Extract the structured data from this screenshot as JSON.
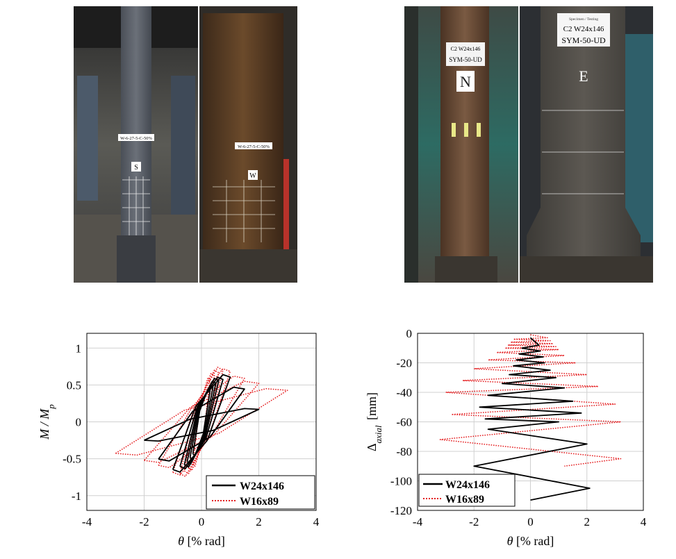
{
  "photos": {
    "left_pair": {
      "labels": [
        "W-6-27-5-C-50%",
        "S",
        "W-6-27-5-C-50%",
        "W"
      ]
    },
    "right_pair": {
      "card_north": [
        "C2 W24x146",
        "SYM-50-UD"
      ],
      "letter_north": "N",
      "card_east_small": "Specimen / Testing",
      "card_east": [
        "C2  W24x146",
        "SYM-50-UD"
      ],
      "letter_east": "E"
    }
  },
  "colors": {
    "w24": "#000000",
    "w16": "#e41a1c",
    "frame": "#000000",
    "grid": "#d0d0d0"
  },
  "chart_data": [
    {
      "type": "line",
      "title": "",
      "xlabel_symbol": "θ",
      "xlabel_unit": " [% rad]",
      "ylabel_main": "M / M",
      "ylabel_sub": "p",
      "xlim": [
        -4,
        4
      ],
      "ylim": [
        -1.2,
        1.2
      ],
      "xticks": [
        -4,
        -2,
        0,
        2,
        4
      ],
      "yticks": [
        -1,
        -0.5,
        0,
        0.5,
        1
      ],
      "ytick_labels": [
        "-1",
        "-0.5",
        "0",
        "0.5",
        "1"
      ],
      "grid": true,
      "legend_position": "bottom-right",
      "series": [
        {
          "name": "W24x146",
          "style": "solid",
          "amplitudes": [
            0.3,
            0.4,
            0.5,
            0.6,
            0.75,
            1.0,
            1.5,
            2.0
          ],
          "moments": [
            0.45,
            0.5,
            0.56,
            0.6,
            0.62,
            0.66,
            0.5,
            0.22
          ]
        },
        {
          "name": "W16x89",
          "style": "dotted",
          "amplitudes": [
            0.3,
            0.45,
            0.6,
            0.75,
            1.0,
            1.5,
            2.0,
            3.0
          ],
          "moments": [
            0.6,
            0.66,
            0.7,
            0.74,
            0.72,
            0.62,
            0.55,
            0.45
          ]
        }
      ]
    },
    {
      "type": "line",
      "title": "",
      "xlabel_symbol": "θ",
      "xlabel_unit": " [% rad]",
      "ylabel_main": "Δ",
      "ylabel_sub": "axial",
      "ylabel_unit": " [mm]",
      "xlim": [
        -4,
        4
      ],
      "ylim": [
        -120,
        0
      ],
      "xticks": [
        -4,
        -2,
        0,
        2,
        4
      ],
      "yticks": [
        -120,
        -100,
        -80,
        -60,
        -40,
        -20,
        0
      ],
      "grid": true,
      "legend_position": "bottom-left",
      "series": [
        {
          "name": "W24x146",
          "style": "solid",
          "points": [
            [
              0,
              -3
            ],
            [
              0.3,
              -8
            ],
            [
              -0.3,
              -10
            ],
            [
              0.35,
              -12
            ],
            [
              -0.4,
              -14
            ],
            [
              0.45,
              -16
            ],
            [
              -0.5,
              -18
            ],
            [
              0.5,
              -20
            ],
            [
              -0.6,
              -22
            ],
            [
              0.7,
              -25
            ],
            [
              -0.75,
              -28
            ],
            [
              0.9,
              -30
            ],
            [
              -1.0,
              -34
            ],
            [
              1.2,
              -37
            ],
            [
              -1.5,
              -42
            ],
            [
              1.5,
              -46
            ],
            [
              -1.8,
              -50
            ],
            [
              1.8,
              -54
            ],
            [
              -1.6,
              -58
            ],
            [
              1.0,
              -60
            ],
            [
              -1.5,
              -65
            ],
            [
              2.0,
              -75
            ],
            [
              -2.0,
              -90
            ],
            [
              2.1,
              -105
            ],
            [
              0,
              -113
            ]
          ]
        },
        {
          "name": "W16x89",
          "style": "dotted",
          "points": [
            [
              0,
              -1
            ],
            [
              0.6,
              -3
            ],
            [
              -0.6,
              -4
            ],
            [
              0.7,
              -5
            ],
            [
              -0.7,
              -6
            ],
            [
              0.8,
              -7
            ],
            [
              -0.8,
              -8
            ],
            [
              0.9,
              -9
            ],
            [
              -0.9,
              -10
            ],
            [
              1.0,
              -11
            ],
            [
              -1.2,
              -13
            ],
            [
              1.2,
              -15
            ],
            [
              -1.5,
              -18
            ],
            [
              1.6,
              -20
            ],
            [
              -2.0,
              -24
            ],
            [
              2.0,
              -28
            ],
            [
              -2.4,
              -32
            ],
            [
              2.4,
              -36
            ],
            [
              -3.0,
              -40
            ],
            [
              3.0,
              -48
            ],
            [
              -2.8,
              -55
            ],
            [
              3.2,
              -60
            ],
            [
              -3.2,
              -72
            ],
            [
              3.2,
              -85
            ],
            [
              1.2,
              -90
            ]
          ]
        }
      ]
    }
  ]
}
